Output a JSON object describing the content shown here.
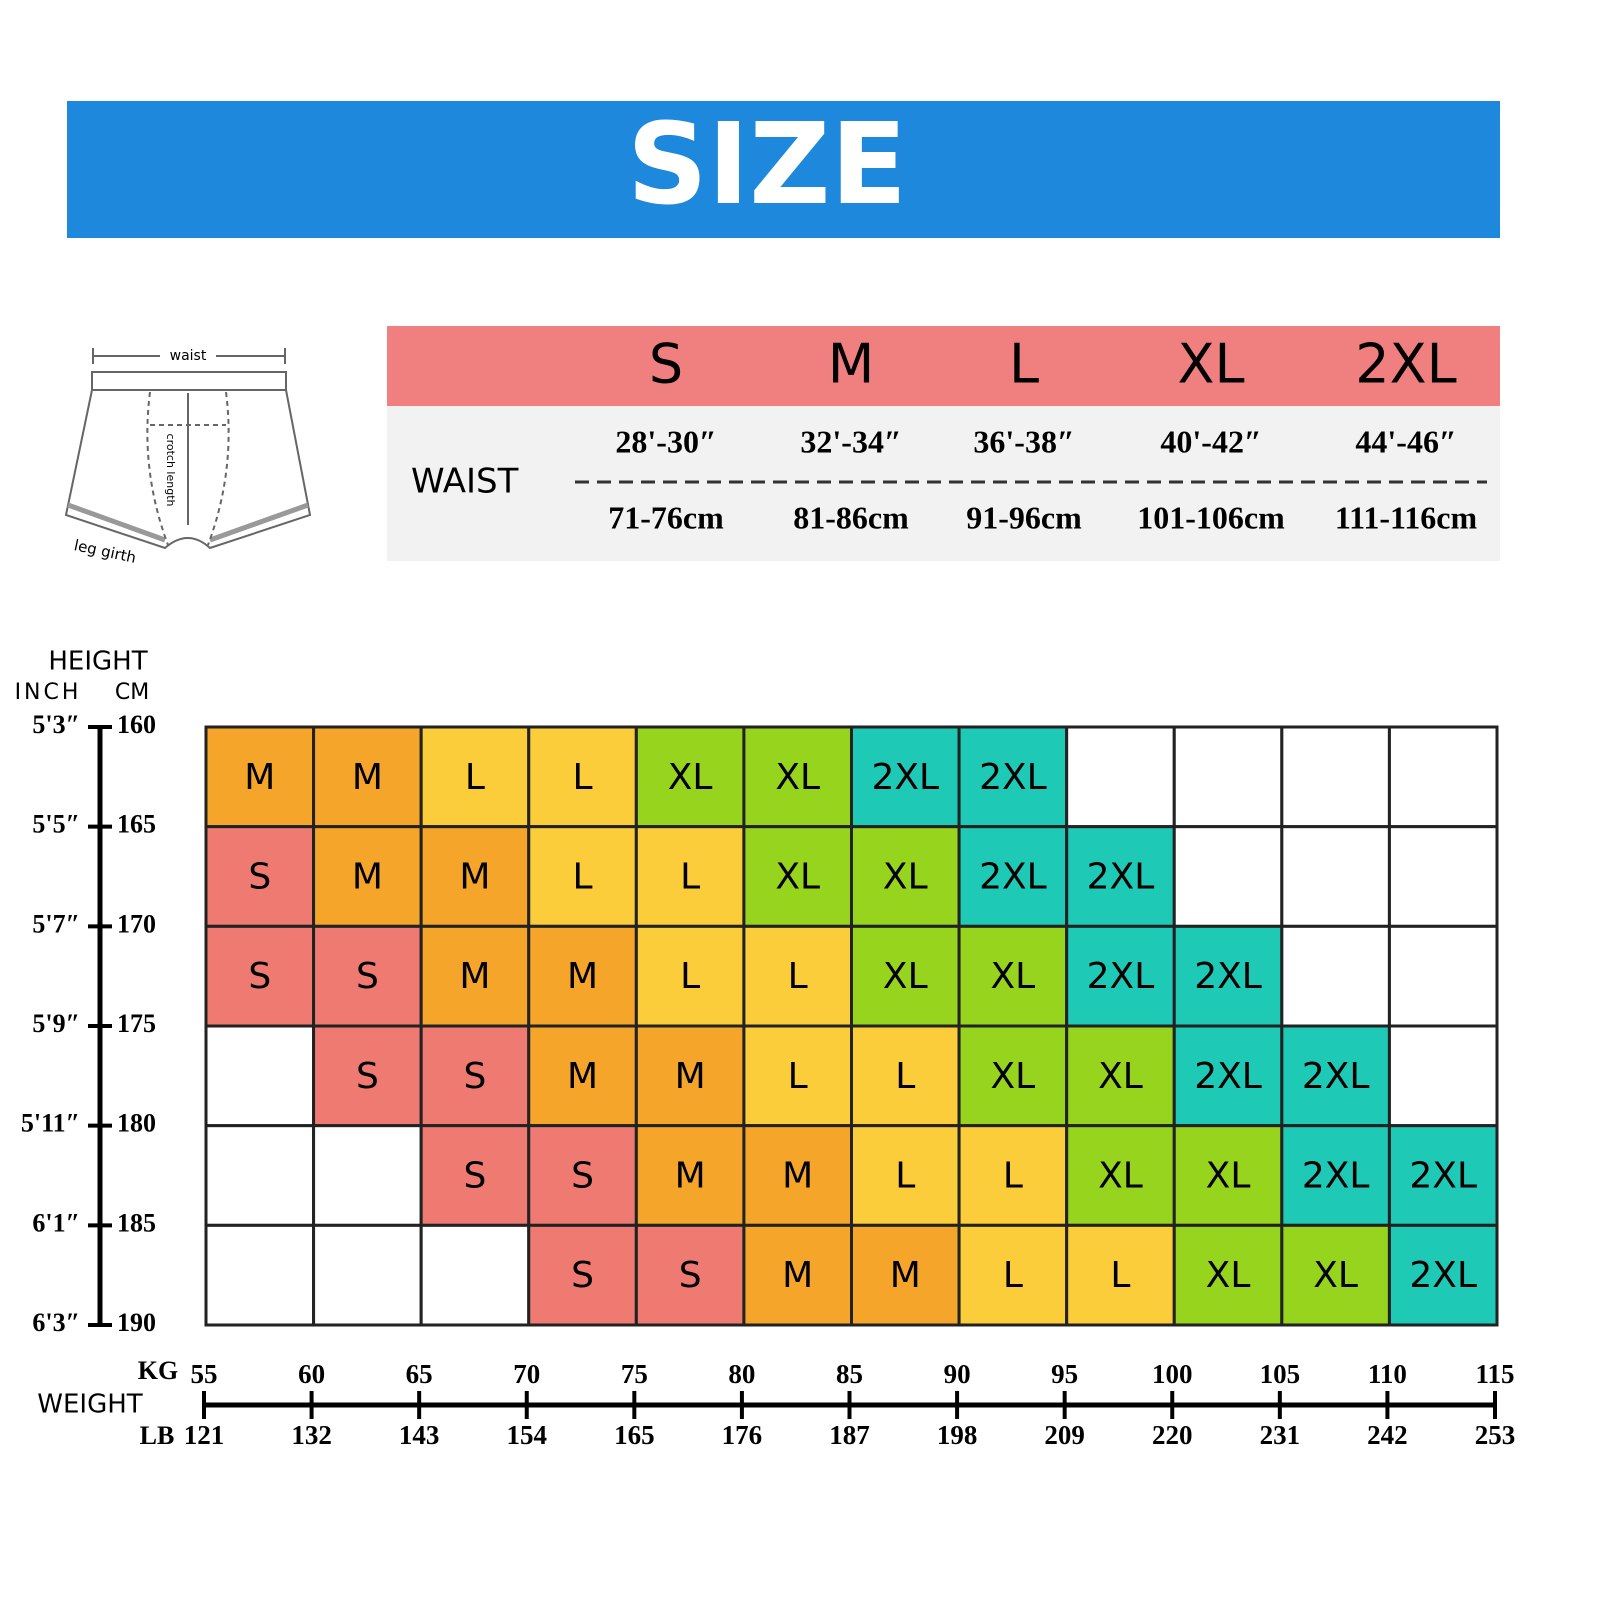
{
  "header": {
    "title": "SIZE"
  },
  "diagram": {
    "waist": "waist",
    "crotch": "crotch length",
    "leg": "leg girth"
  },
  "size_table": {
    "sizes": [
      "S",
      "M",
      "L",
      "XL",
      "2XL"
    ],
    "row_label": "WAIST",
    "inches": [
      "28'-30″",
      "32'-34″",
      "36'-38″",
      "40'-42″",
      "44'-46″"
    ],
    "cm": [
      "71-76cm",
      "81-86cm",
      "91-96cm",
      "101-106cm",
      "111-116cm"
    ]
  },
  "grid": {
    "height_label": "HEIGHT",
    "inch_label": "INCH",
    "cm_label": "CM",
    "height_inch": [
      "5'3″",
      "5'5″",
      "5'7″",
      "5'9″",
      "5'11″",
      "6'1″",
      "6'3″"
    ],
    "height_cm": [
      "160",
      "165",
      "170",
      "175",
      "180",
      "185",
      "190"
    ],
    "weight_label": "WEIGHT",
    "kg_label": "KG",
    "lb_label": "LB",
    "kg": [
      "55",
      "60",
      "65",
      "70",
      "75",
      "80",
      "85",
      "90",
      "95",
      "100",
      "105",
      "110",
      "115"
    ],
    "lb": [
      "121",
      "132",
      "143",
      "154",
      "165",
      "176",
      "187",
      "198",
      "209",
      "220",
      "231",
      "242",
      "253"
    ],
    "colors": {
      "S": "#ef7a72",
      "M": "#f5a62a",
      "L": "#fbcd3a",
      "XL": "#96d41e",
      "2XL": "#1ec9b6"
    },
    "rows": [
      [
        "M",
        "M",
        "L",
        "L",
        "XL",
        "XL",
        "2XL",
        "2XL",
        null,
        null,
        null,
        null
      ],
      [
        "S",
        "M",
        "M",
        "L",
        "L",
        "XL",
        "XL",
        "2XL",
        "2XL",
        null,
        null,
        null
      ],
      [
        "S",
        "S",
        "M",
        "M",
        "L",
        "L",
        "XL",
        "XL",
        "2XL",
        "2XL",
        null,
        null
      ],
      [
        null,
        "S",
        "S",
        "M",
        "M",
        "L",
        "L",
        "XL",
        "XL",
        "2XL",
        "2XL",
        null
      ],
      [
        null,
        null,
        "S",
        "S",
        "M",
        "M",
        "L",
        "L",
        "XL",
        "XL",
        "2XL",
        "2XL"
      ],
      [
        null,
        null,
        null,
        "S",
        "S",
        "M",
        "M",
        "L",
        "L",
        "XL",
        "XL",
        "2XL"
      ]
    ]
  }
}
